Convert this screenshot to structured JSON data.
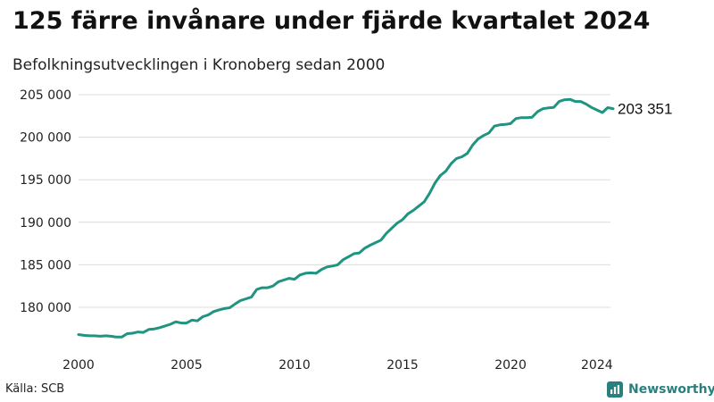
{
  "title": "125 färre invånare under fjärde kvartalet 2024",
  "subtitle": "Befolkningsutvecklingen i Kronoberg sedan 2000",
  "source": "Källa: SCB",
  "brand": {
    "name": "Newsworthy",
    "icon": "bar-chart-icon",
    "color": "#2a7f7f"
  },
  "colors": {
    "line": "#1f9480",
    "grid": "#dcdcdc",
    "text": "#222222"
  },
  "chart_data": {
    "type": "line",
    "title": "125 färre invånare under fjärde kvartalet 2024",
    "subtitle": "Befolkningsutvecklingen i Kronoberg sedan 2000",
    "xlabel": "",
    "ylabel": "",
    "grid": true,
    "xlim": [
      2000,
      2025
    ],
    "ylim": [
      176500,
      205500
    ],
    "x_ticks": [
      2000,
      2005,
      2010,
      2015,
      2020,
      2024
    ],
    "x_tick_labels": [
      "2000",
      "2005",
      "2010",
      "2015",
      "2020",
      "2024"
    ],
    "y_ticks": [
      180000,
      185000,
      190000,
      195000,
      200000,
      205000
    ],
    "y_tick_labels": [
      "180 000",
      "185 000",
      "190 000",
      "195 000",
      "200 000",
      "205 000"
    ],
    "end_label": "203 351",
    "series": [
      {
        "x": [
          2000.0,
          2000.25,
          2000.5,
          2000.75,
          2001.0,
          2001.25,
          2001.5,
          2001.75,
          2002.0,
          2002.25,
          2002.5,
          2002.75,
          2003.0,
          2003.25,
          2003.5,
          2003.75,
          2004.0,
          2004.25,
          2004.5,
          2004.75,
          2005.0,
          2005.25,
          2005.5,
          2005.75,
          2006.0,
          2006.25,
          2006.5,
          2006.75,
          2007.0,
          2007.25,
          2007.5,
          2007.75,
          2008.0,
          2008.25,
          2008.5,
          2008.75,
          2009.0,
          2009.25,
          2009.5,
          2009.75,
          2010.0,
          2010.25,
          2010.5,
          2010.75,
          2011.0,
          2011.25,
          2011.5,
          2011.75,
          2012.0,
          2012.25,
          2012.5,
          2012.75,
          2013.0,
          2013.25,
          2013.5,
          2013.75,
          2014.0,
          2014.25,
          2014.5,
          2014.75,
          2015.0,
          2015.25,
          2015.5,
          2015.75,
          2016.0,
          2016.25,
          2016.5,
          2016.75,
          2017.0,
          2017.25,
          2017.5,
          2017.75,
          2018.0,
          2018.25,
          2018.5,
          2018.75,
          2019.0,
          2019.25,
          2019.5,
          2019.75,
          2020.0,
          2020.25,
          2020.5,
          2020.75,
          2021.0,
          2021.25,
          2021.5,
          2021.75,
          2022.0,
          2022.25,
          2022.5,
          2022.75,
          2023.0,
          2023.25,
          2023.5,
          2023.75,
          2024.0,
          2024.25,
          2024.5,
          2024.75
        ],
        "y": [
          176800,
          176700,
          176650,
          176650,
          176600,
          176650,
          176600,
          176500,
          176500,
          176900,
          176950,
          177100,
          177050,
          177400,
          177450,
          177600,
          177800,
          178000,
          178300,
          178150,
          178150,
          178500,
          178400,
          178900,
          179100,
          179500,
          179700,
          179850,
          179950,
          180400,
          180800,
          181000,
          181200,
          182100,
          182300,
          182300,
          182500,
          183000,
          183200,
          183400,
          183300,
          183800,
          184000,
          184050,
          184000,
          184450,
          184750,
          184850,
          185000,
          185600,
          185950,
          186300,
          186400,
          186950,
          187300,
          187600,
          187900,
          188700,
          189300,
          189900,
          190300,
          191000,
          191400,
          191900,
          192400,
          193400,
          194600,
          195500,
          196000,
          196900,
          197500,
          197700,
          198100,
          199100,
          199800,
          200200,
          200500,
          201300,
          201450,
          201500,
          201600,
          202200,
          202300,
          202300,
          202350,
          203000,
          203350,
          203450,
          203500,
          204200,
          204400,
          204450,
          204200,
          204200,
          203900,
          203500,
          203200,
          202900,
          203476,
          203351
        ]
      }
    ]
  }
}
